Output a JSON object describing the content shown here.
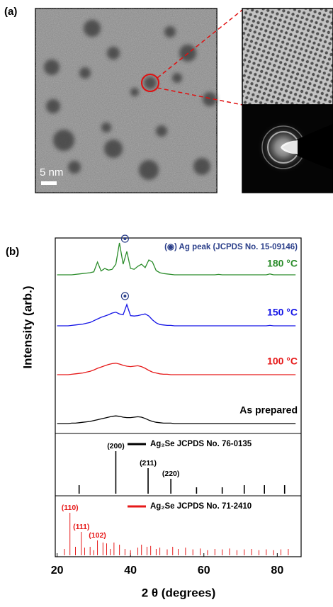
{
  "panel_a": {
    "label": "(a)",
    "scale_bar": "5 nm"
  },
  "chart_data": {
    "type": "xrd",
    "label": "(b)",
    "x_label": "2 θ (degrees)",
    "y_label": "Intensity (arb.)",
    "ag_legend": "(◉) Ag peak (JCPDS No. 15-09146)",
    "ag_peak_x": 38.5,
    "xlim": [
      19.5,
      86.5
    ],
    "xticks": [
      20,
      40,
      60,
      80
    ],
    "x": [
      20,
      21,
      22,
      23,
      24,
      25,
      26,
      27,
      28,
      29,
      30,
      31,
      32,
      33,
      34,
      35,
      36,
      37,
      38,
      39,
      40,
      41,
      42,
      43,
      44,
      45,
      46,
      47,
      48,
      49,
      50,
      51,
      52,
      53,
      54,
      55,
      56,
      57,
      58,
      59,
      60,
      61,
      62,
      63,
      64,
      65,
      66,
      67,
      68,
      69,
      70,
      71,
      72,
      73,
      74,
      75,
      76,
      77,
      78,
      79,
      80,
      81,
      82,
      83,
      84,
      85
    ],
    "series": [
      {
        "name": "180 °C",
        "color": "#2a8c2a",
        "values": [
          15,
          15,
          15,
          15,
          15,
          16,
          17,
          18,
          19,
          20,
          22,
          45,
          24,
          30,
          26,
          28,
          40,
          90,
          40,
          70,
          30,
          28,
          35,
          40,
          32,
          50,
          45,
          25,
          20,
          18,
          17,
          16,
          15,
          15,
          15,
          15,
          15,
          15,
          15,
          15,
          15,
          15,
          15,
          15,
          16,
          15,
          15,
          15,
          15,
          15,
          15,
          15,
          15,
          15,
          15,
          15,
          15,
          15,
          17,
          15,
          15,
          15,
          15,
          15,
          15,
          15
        ]
      },
      {
        "name": "150 °C",
        "color": "#1414e6",
        "values": [
          10,
          10,
          10,
          10,
          11,
          12,
          13,
          14,
          16,
          18,
          22,
          26,
          30,
          33,
          36,
          40,
          42,
          38,
          36,
          60,
          34,
          33,
          34,
          36,
          38,
          33,
          24,
          17,
          13,
          12,
          11,
          11,
          10,
          10,
          10,
          10,
          10,
          10,
          10,
          10,
          10,
          10,
          10,
          10,
          10,
          10,
          10,
          10,
          10,
          10,
          10,
          10,
          10,
          10,
          10,
          10,
          10,
          10,
          11,
          10,
          10,
          10,
          10,
          10,
          10,
          10
        ]
      },
      {
        "name": "100 °C",
        "color": "#e61919",
        "values": [
          10,
          10,
          10,
          10,
          11,
          12,
          13,
          14,
          16,
          18,
          21,
          25,
          28,
          31,
          34,
          36,
          37,
          35,
          32,
          30,
          29,
          30,
          31,
          29,
          25,
          20,
          16,
          14,
          12,
          11,
          11,
          10,
          10,
          10,
          10,
          10,
          10,
          10,
          10,
          10,
          10,
          10,
          10,
          10,
          10,
          10,
          10,
          10,
          10,
          10,
          10,
          10,
          10,
          10,
          10,
          10,
          10,
          10,
          10,
          10,
          10,
          10,
          10,
          10,
          10,
          10
        ]
      },
      {
        "name": "As prepared",
        "color": "#000000",
        "values": [
          10,
          10,
          10,
          10,
          11,
          11,
          12,
          13,
          14,
          15,
          17,
          19,
          21,
          23,
          25,
          27,
          28,
          27,
          25,
          24,
          24,
          25,
          26,
          25,
          22,
          18,
          15,
          13,
          12,
          11,
          11,
          11,
          10,
          10,
          10,
          10,
          10,
          10,
          10,
          10,
          10,
          10,
          10,
          10,
          10,
          10,
          10,
          10,
          10,
          10,
          10,
          10,
          10,
          10,
          10,
          10,
          10,
          10,
          10,
          10,
          10,
          10,
          10,
          10,
          10,
          10
        ]
      }
    ],
    "references": [
      {
        "name": "Ag₂Se JCPDS No. 76-0135",
        "color": "#000000",
        "x": [
          26,
          36,
          44.8,
          51,
          58,
          65,
          71,
          76.5,
          82
        ],
        "values": [
          20,
          100,
          60,
          35,
          15,
          15,
          20,
          20,
          20
        ],
        "labels": [
          null,
          "(200)",
          "(211)",
          "(220)",
          null,
          null,
          null,
          null,
          null
        ]
      },
      {
        "name": "Ag₂Se JCPDS No. 71-2410",
        "color": "#e61919",
        "x": [
          22,
          23.5,
          25,
          26.6,
          27.5,
          29,
          30,
          31,
          32.5,
          33.5,
          34.5,
          35.5,
          37,
          38.5,
          40,
          42,
          43,
          44.5,
          45.5,
          47,
          48,
          50,
          51.5,
          53,
          55,
          57,
          59,
          61,
          63,
          65,
          67,
          69,
          71,
          73,
          75,
          77,
          79,
          81,
          83
        ],
        "values": [
          15,
          100,
          20,
          55,
          18,
          20,
          12,
          35,
          30,
          28,
          15,
          30,
          25,
          15,
          12,
          18,
          25,
          20,
          22,
          15,
          18,
          14,
          20,
          15,
          18,
          14,
          16,
          12,
          15,
          14,
          16,
          12,
          14,
          15,
          12,
          14,
          12,
          14,
          15
        ],
        "labels": [
          null,
          "(110)",
          null,
          "(111)",
          null,
          null,
          null,
          "(102)",
          null,
          null,
          null,
          null,
          null,
          null,
          null,
          null,
          null,
          null,
          null,
          null,
          null,
          null,
          null,
          null,
          null,
          null,
          null,
          null,
          null,
          null,
          null,
          null,
          null,
          null,
          null,
          null,
          null,
          null,
          null
        ]
      }
    ]
  }
}
